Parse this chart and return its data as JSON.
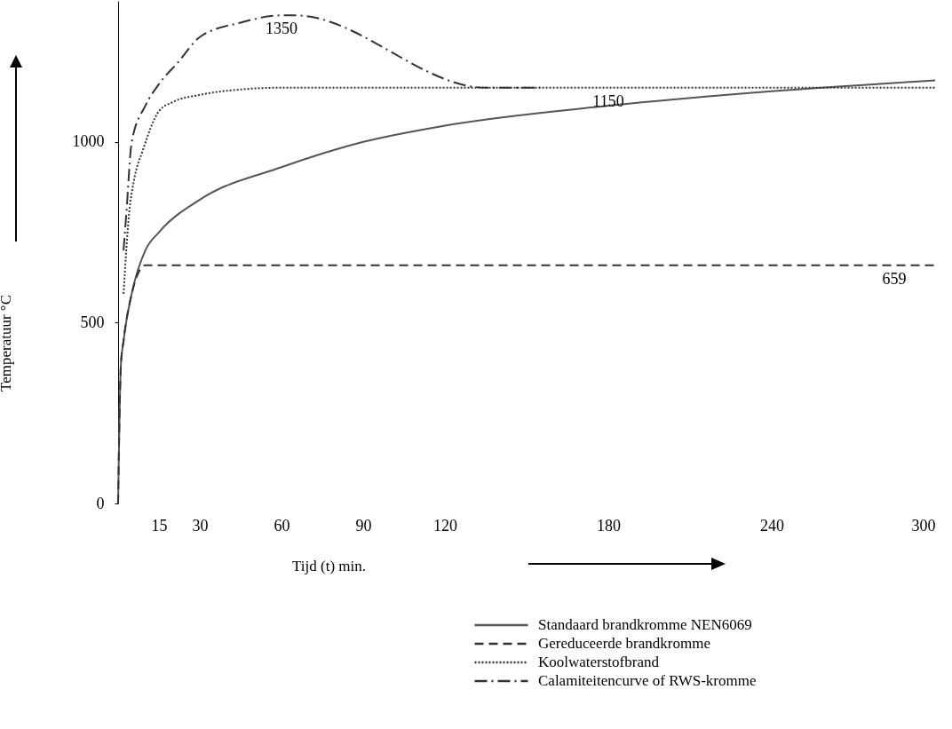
{
  "chart_data": {
    "type": "line",
    "xlabel": "Tijd (t) min.",
    "ylabel": "Temperatuur °C",
    "xlim": [
      0,
      300
    ],
    "ylim": [
      0,
      1390
    ],
    "xticks": [
      15,
      30,
      60,
      90,
      120,
      180,
      240,
      300
    ],
    "yticks": [
      0,
      500,
      1000
    ],
    "legend": "bottom right",
    "grid": false,
    "series": [
      {
        "name": "Standaard brandkromme NEN6069",
        "color": "#555555",
        "line_style": "solid",
        "x": [
          0,
          1,
          2,
          5,
          10,
          15,
          30,
          60,
          90,
          120,
          180,
          240,
          300
        ],
        "values": [
          0,
          380,
          450,
          580,
          700,
          750,
          840,
          930,
          1000,
          1045,
          1100,
          1140,
          1170
        ]
      },
      {
        "name": "Gereduceerde brandkromme",
        "color": "#333333",
        "line_style": "dashed",
        "x": [
          0,
          1,
          2,
          5,
          10,
          300
        ],
        "values": [
          0,
          380,
          450,
          580,
          659,
          659
        ]
      },
      {
        "name": "Koolwaterstofbrand",
        "color": "#333333",
        "line_style": "dotted",
        "x": [
          2,
          4,
          6,
          9,
          15,
          20,
          30,
          45,
          60,
          300
        ],
        "values": [
          580,
          800,
          900,
          975,
          1085,
          1110,
          1130,
          1145,
          1150,
          1150
        ]
      },
      {
        "name": "Calamiteitencurve of RWS-kromme",
        "color": "#333333",
        "line_style": "dashdot",
        "x": [
          2,
          3,
          5,
          10,
          15,
          22,
          30,
          45,
          60,
          65,
          135,
          155
        ],
        "values": [
          700,
          800,
          1000,
          1100,
          1160,
          1220,
          1290,
          1330,
          1350,
          1350,
          1150,
          1150
        ]
      }
    ],
    "annotations": [
      {
        "text": "1350",
        "x": 60,
        "y": 1350
      },
      {
        "text": "1150",
        "x": 180,
        "y": 1150
      },
      {
        "text": "659",
        "x": 285,
        "y": 659
      }
    ]
  }
}
